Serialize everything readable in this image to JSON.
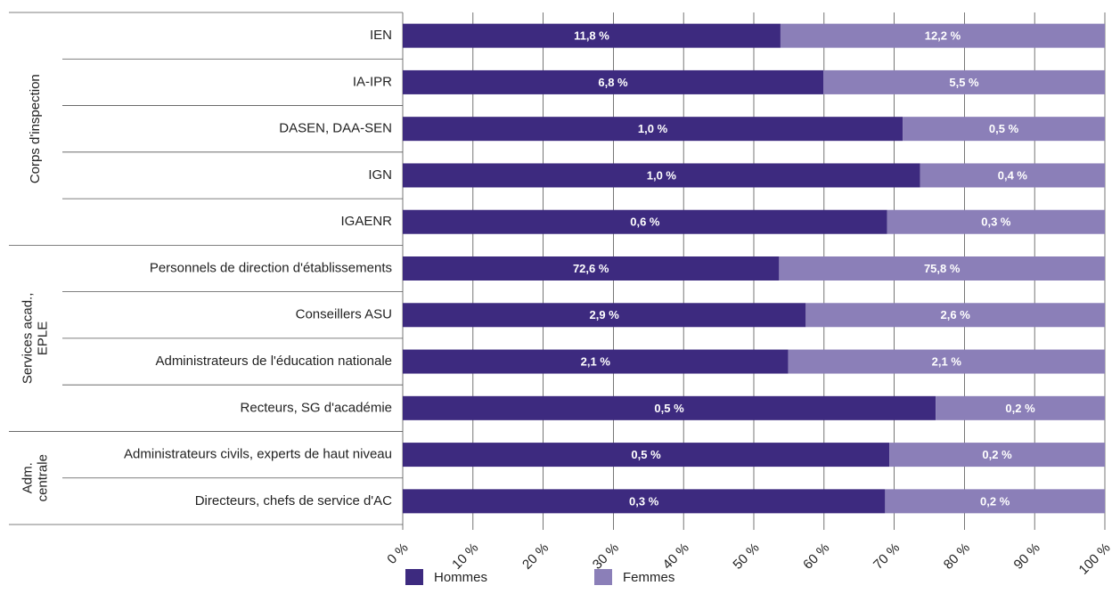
{
  "chart_data": {
    "type": "bar",
    "orientation": "horizontal",
    "stacked": true,
    "categories": [
      "IEN",
      "IA-IPR",
      "DASEN, DAA-SEN",
      "IGN",
      "IGAENR",
      "Personnels de direction d'établissements",
      "Conseillers ASU",
      "Administrateurs de l'éducation nationale",
      "Recteurs, SG d'académie",
      "Administrateurs civils, experts de haut niveau",
      "Directeurs, chefs de service d'AC"
    ],
    "groups": [
      {
        "label": [
          "Corps d'inspection"
        ],
        "rows": [
          0,
          4
        ]
      },
      {
        "label": [
          "Services acad.,",
          "EPLE"
        ],
        "rows": [
          5,
          8
        ]
      },
      {
        "label": [
          "Adm.",
          "centrale"
        ],
        "rows": [
          9,
          10
        ]
      }
    ],
    "series": [
      {
        "name": "Hommes",
        "color": "#3d2a7f",
        "values": [
          53.8,
          59.9,
          71.2,
          73.7,
          69.0,
          53.6,
          57.4,
          54.9,
          75.9,
          69.3,
          68.7
        ],
        "data_labels": [
          "11,8 %",
          "6,8 %",
          "1,0 %",
          "1,0 %",
          "0,6 %",
          "72,6 %",
          "2,9 %",
          "2,1 %",
          "0,5 %",
          "0,5 %",
          "0,3 %"
        ]
      },
      {
        "name": "Femmes",
        "color": "#8b7fb8",
        "values": [
          46.2,
          40.1,
          28.8,
          26.3,
          31.0,
          46.4,
          42.6,
          45.1,
          24.1,
          30.7,
          31.3
        ],
        "data_labels": [
          "12,2 %",
          "5,5 %",
          "0,5 %",
          "0,4 %",
          "0,3 %",
          "75,8 %",
          "2,6 %",
          "2,1 %",
          "0,2 %",
          "0,2 %",
          "0,2 %"
        ]
      }
    ],
    "xlim": [
      0,
      100
    ],
    "xticks": [
      {
        "value": 0,
        "label": "0 %"
      },
      {
        "value": 10,
        "label": "10 %"
      },
      {
        "value": 20,
        "label": "20 %"
      },
      {
        "value": 30,
        "label": "30 %"
      },
      {
        "value": 40,
        "label": "40 %"
      },
      {
        "value": 50,
        "label": "50 %"
      },
      {
        "value": 60,
        "label": "60 %"
      },
      {
        "value": 70,
        "label": "70 %"
      },
      {
        "value": 80,
        "label": "80 %"
      },
      {
        "value": 90,
        "label": "90 %"
      },
      {
        "value": 100,
        "label": "100 %"
      }
    ],
    "grid": true,
    "legend": "bottom"
  }
}
